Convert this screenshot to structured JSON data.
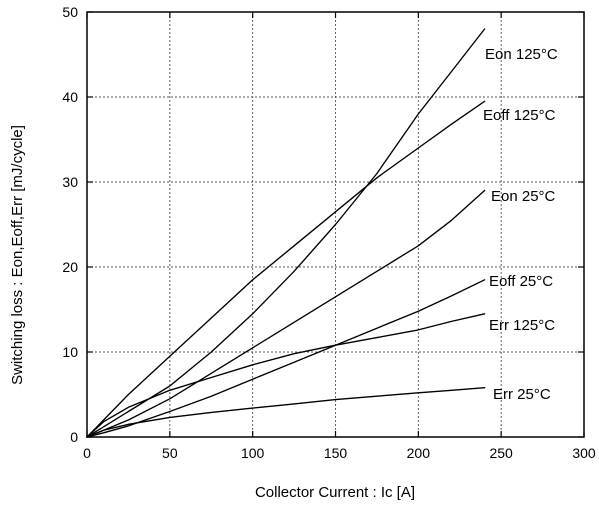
{
  "chart_data": {
    "type": "line",
    "title": "",
    "xlabel": "Collector Current : Ic  [A]",
    "ylabel": "Switching loss : Eon,Eoff,Err    [mJ/cycle]",
    "xlim": [
      0,
      300
    ],
    "ylim": [
      0,
      50
    ],
    "x_ticks": [
      0,
      50,
      100,
      150,
      200,
      250,
      300
    ],
    "y_ticks": [
      0,
      10,
      20,
      30,
      40,
      50
    ],
    "x_tick_labels": [
      "0",
      "50",
      "100",
      "150",
      "200",
      "250",
      "300"
    ],
    "y_tick_labels": [
      "0",
      "10",
      "20",
      "30",
      "40",
      "50"
    ],
    "grid": true,
    "legend": "none",
    "line_color": "#000000",
    "series": [
      {
        "name": "Eon 125°C",
        "x": [
          0,
          10,
          25,
          50,
          75,
          100,
          125,
          150,
          175,
          200,
          220,
          240
        ],
        "y": [
          0,
          1.2,
          3,
          6,
          10,
          14.5,
          19.5,
          25,
          31,
          38,
          43,
          48
        ]
      },
      {
        "name": "Eoff 125°C",
        "x": [
          0,
          10,
          25,
          50,
          75,
          100,
          125,
          150,
          175,
          200,
          220,
          240
        ],
        "y": [
          0,
          2,
          5,
          9.5,
          14,
          18.5,
          22.5,
          26.5,
          30.5,
          34,
          36.8,
          39.5
        ]
      },
      {
        "name": "Eon 25°C",
        "x": [
          0,
          10,
          25,
          50,
          75,
          100,
          125,
          150,
          175,
          200,
          220,
          240
        ],
        "y": [
          0,
          0.8,
          2,
          4.5,
          7.5,
          10.5,
          13.5,
          16.5,
          19.5,
          22.5,
          25.5,
          29
        ]
      },
      {
        "name": "Eoff 25°C",
        "x": [
          0,
          10,
          25,
          50,
          75,
          100,
          125,
          150,
          175,
          200,
          220,
          240
        ],
        "y": [
          0,
          0.5,
          1.3,
          3,
          4.8,
          6.8,
          8.8,
          10.8,
          12.8,
          14.8,
          16.6,
          18.5
        ]
      },
      {
        "name": "Err 125°C",
        "x": [
          0,
          10,
          25,
          50,
          75,
          100,
          125,
          150,
          175,
          200,
          220,
          240
        ],
        "y": [
          0,
          1.8,
          3.5,
          5.5,
          7,
          8.5,
          9.8,
          10.8,
          11.7,
          12.6,
          13.6,
          14.5
        ]
      },
      {
        "name": "Err 25°C",
        "x": [
          0,
          10,
          25,
          50,
          75,
          100,
          125,
          150,
          175,
          200,
          220,
          240
        ],
        "y": [
          0,
          0.8,
          1.5,
          2.3,
          2.9,
          3.4,
          3.9,
          4.4,
          4.8,
          5.2,
          5.5,
          5.8
        ]
      }
    ]
  }
}
